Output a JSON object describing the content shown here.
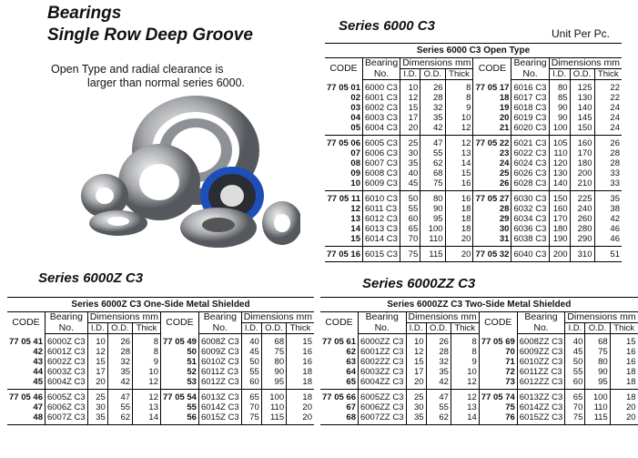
{
  "heading": {
    "line1": "Bearings",
    "line2": "Single Row Deep Groove"
  },
  "description": {
    "line1": "Open Type and radial clearance is",
    "line2": "larger than normal  series 6000."
  },
  "unit_note": "Unit Per Pc.",
  "image": {
    "icon": "ball-bearings-photo"
  },
  "headers": {
    "code": "CODE",
    "bearing1": "Bearing",
    "bearing2": "No.",
    "dims": "Dimensions mm",
    "id": "I.D.",
    "od": "O.D.",
    "thick": "Thick"
  },
  "tables": [
    {
      "series": "Series 6000 C3",
      "title": "Series 6000 C3 Open Type",
      "groups": [
        [
          [
            "77 05 01",
            "6000 C3",
            "10",
            "26",
            "8",
            "77 05 17",
            "6016 C3",
            "80",
            "125",
            "22"
          ],
          [
            "02",
            "6001 C3",
            "12",
            "28",
            "8",
            "18",
            "6017 C3",
            "85",
            "130",
            "22"
          ],
          [
            "03",
            "6002 C3",
            "15",
            "32",
            "9",
            "19",
            "6018 C3",
            "90",
            "140",
            "24"
          ],
          [
            "04",
            "6003 C3",
            "17",
            "35",
            "10",
            "20",
            "6019 C3",
            "90",
            "145",
            "24"
          ],
          [
            "05",
            "6004 C3",
            "20",
            "42",
            "12",
            "21",
            "6020 C3",
            "100",
            "150",
            "24"
          ]
        ],
        [
          [
            "77 05 06",
            "6005 C3",
            "25",
            "47",
            "12",
            "77 05 22",
            "6021 C3",
            "105",
            "160",
            "26"
          ],
          [
            "07",
            "6006 C3",
            "30",
            "55",
            "13",
            "23",
            "6022 C3",
            "110",
            "170",
            "28"
          ],
          [
            "08",
            "6007 C3",
            "35",
            "62",
            "14",
            "24",
            "6024 C3",
            "120",
            "180",
            "28"
          ],
          [
            "09",
            "6008 C3",
            "40",
            "68",
            "15",
            "25",
            "6026 C3",
            "130",
            "200",
            "33"
          ],
          [
            "10",
            "6009 C3",
            "45",
            "75",
            "16",
            "26",
            "6028 C3",
            "140",
            "210",
            "33"
          ]
        ],
        [
          [
            "77 05 11",
            "6010 C3",
            "50",
            "80",
            "16",
            "77 05 27",
            "6030 C3",
            "150",
            "225",
            "35"
          ],
          [
            "12",
            "6011 C3",
            "55",
            "90",
            "18",
            "28",
            "6032 C3",
            "160",
            "240",
            "38"
          ],
          [
            "13",
            "6012 C3",
            "60",
            "95",
            "18",
            "29",
            "6034 C3",
            "170",
            "260",
            "42"
          ],
          [
            "14",
            "6013 C3",
            "65",
            "100",
            "18",
            "30",
            "6036 C3",
            "180",
            "280",
            "46"
          ],
          [
            "15",
            "6014 C3",
            "70",
            "110",
            "20",
            "31",
            "6038 C3",
            "190",
            "290",
            "46"
          ]
        ],
        [
          [
            "77 05 16",
            "6015 C3",
            "75",
            "115",
            "20",
            "77 05 32",
            "6040 C3",
            "200",
            "310",
            "51"
          ]
        ]
      ]
    },
    {
      "series": "Series 6000Z C3",
      "title": "Series 6000Z C3 One-Side Metal Shielded",
      "groups": [
        [
          [
            "77 05 41",
            "6000Z C3",
            "10",
            "26",
            "8",
            "77 05 49",
            "6008Z C3",
            "40",
            "68",
            "15"
          ],
          [
            "42",
            "6001Z C3",
            "12",
            "28",
            "8",
            "50",
            "6009Z C3",
            "45",
            "75",
            "16"
          ],
          [
            "43",
            "6002Z C3",
            "15",
            "32",
            "9",
            "51",
            "6010Z C3",
            "50",
            "80",
            "16"
          ],
          [
            "44",
            "6003Z C3",
            "17",
            "35",
            "10",
            "52",
            "6011Z C3",
            "55",
            "90",
            "18"
          ],
          [
            "45",
            "6004Z C3",
            "20",
            "42",
            "12",
            "53",
            "6012Z C3",
            "60",
            "95",
            "18"
          ]
        ],
        [
          [
            "77 05 46",
            "6005Z C3",
            "25",
            "47",
            "12",
            "77 05 54",
            "6013Z C3",
            "65",
            "100",
            "18"
          ],
          [
            "47",
            "6006Z C3",
            "30",
            "55",
            "13",
            "55",
            "6014Z C3",
            "70",
            "110",
            "20"
          ],
          [
            "48",
            "6007Z C3",
            "35",
            "62",
            "14",
            "56",
            "6015Z C3",
            "75",
            "115",
            "20"
          ]
        ]
      ]
    },
    {
      "series": "Series 6000ZZ C3",
      "title": "Series 6000ZZ C3 Two-Side Metal Shielded",
      "groups": [
        [
          [
            "77 05 61",
            "6000ZZ C3",
            "10",
            "26",
            "8",
            "77 05 69",
            "6008ZZ C3",
            "40",
            "68",
            "15"
          ],
          [
            "62",
            "6001ZZ C3",
            "12",
            "28",
            "8",
            "70",
            "6009ZZ C3",
            "45",
            "75",
            "16"
          ],
          [
            "63",
            "6002ZZ C3",
            "15",
            "32",
            "9",
            "71",
            "6010ZZ C3",
            "50",
            "80",
            "16"
          ],
          [
            "64",
            "6003ZZ C3",
            "17",
            "35",
            "10",
            "72",
            "6011ZZ C3",
            "55",
            "90",
            "18"
          ],
          [
            "65",
            "6004ZZ C3",
            "20",
            "42",
            "12",
            "73",
            "6012ZZ C3",
            "60",
            "95",
            "18"
          ]
        ],
        [
          [
            "77 05 66",
            "6005ZZ C3",
            "25",
            "47",
            "12",
            "77 05 74",
            "6013ZZ C3",
            "65",
            "100",
            "18"
          ],
          [
            "67",
            "6006ZZ C3",
            "30",
            "55",
            "13",
            "75",
            "6014ZZ C3",
            "70",
            "110",
            "20"
          ],
          [
            "68",
            "6007ZZ C3",
            "35",
            "62",
            "14",
            "76",
            "6015ZZ C3",
            "75",
            "115",
            "20"
          ]
        ]
      ]
    }
  ]
}
